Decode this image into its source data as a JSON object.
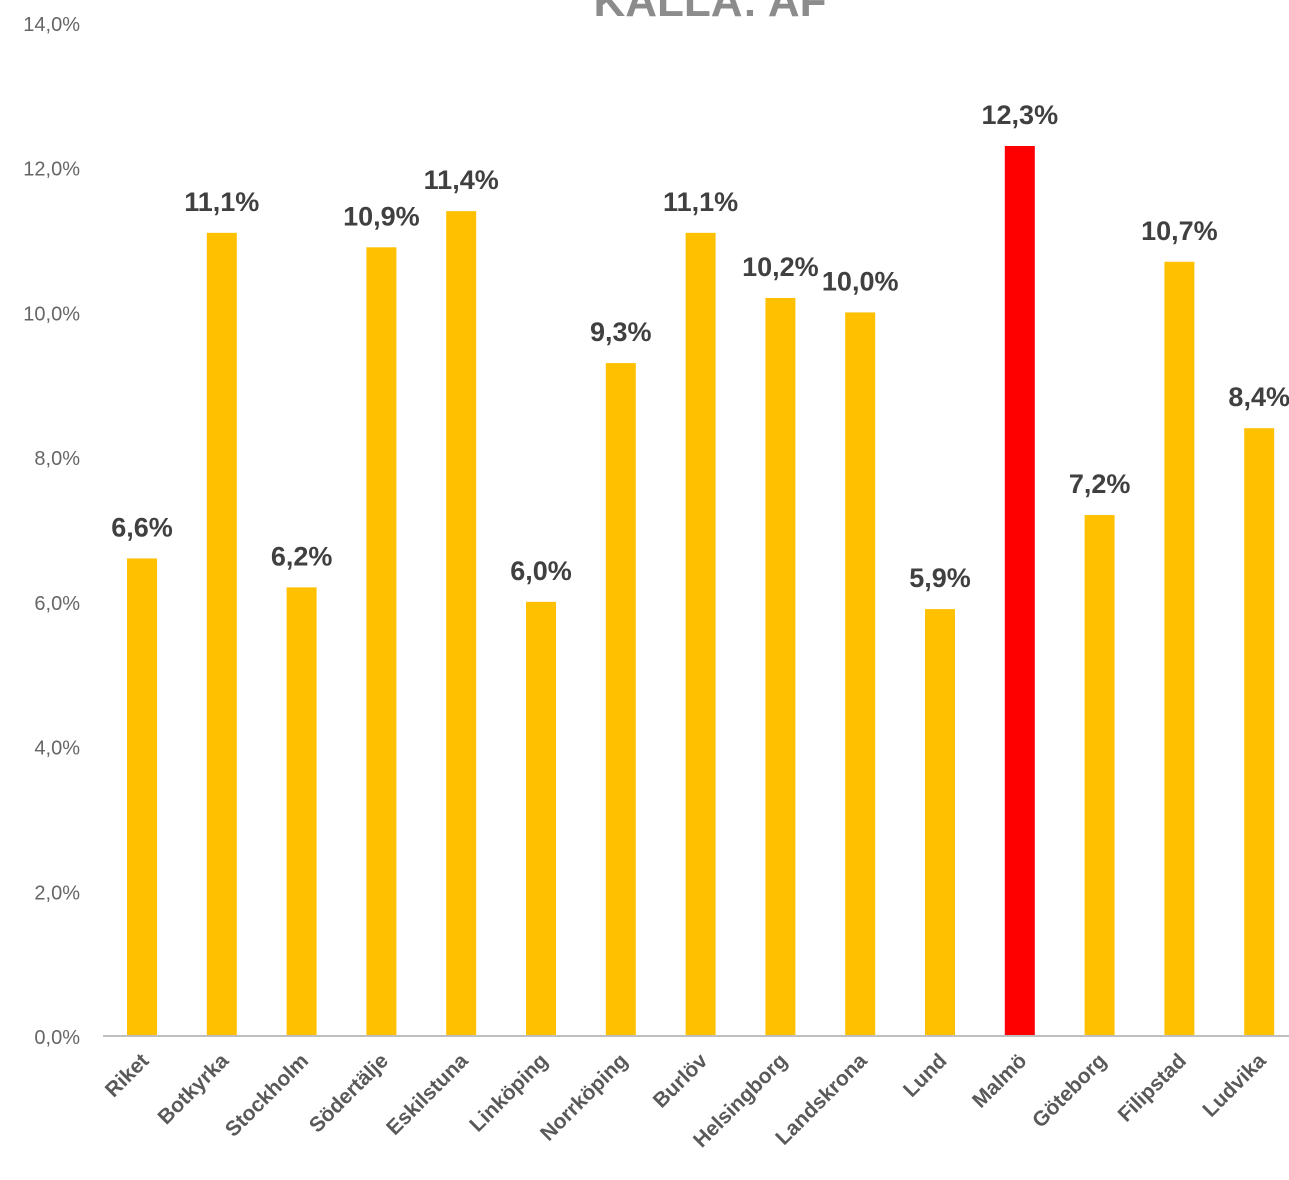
{
  "chart_data": {
    "type": "bar",
    "title": "KÄLLA: AF",
    "xlabel": "",
    "ylabel": "",
    "ylim": [
      0,
      14
    ],
    "y_ticks": [
      "0,0%",
      "2,0%",
      "4,0%",
      "6,0%",
      "8,0%",
      "10,0%",
      "12,0%",
      "14,0%"
    ],
    "grid": false,
    "legend": "none",
    "categories": [
      "Riket",
      "Botkyrka",
      "Stockholm",
      "Södertälje",
      "Eskilstuna",
      "Linköping",
      "Norrköping",
      "Burlöv",
      "Helsingborg",
      "Landskrona",
      "Lund",
      "Malmö",
      "Göteborg",
      "Filipstad",
      "Ludvika"
    ],
    "values": [
      6.6,
      11.1,
      6.2,
      10.9,
      11.4,
      6.0,
      9.3,
      11.1,
      10.2,
      10.0,
      5.9,
      12.3,
      7.2,
      10.7,
      8.4
    ],
    "data_labels": [
      "6,6%",
      "11,1%",
      "6,2%",
      "10,9%",
      "11,4%",
      "6,0%",
      "9,3%",
      "11,1%",
      "10,2%",
      "10,0%",
      "5,9%",
      "12,3%",
      "7,2%",
      "10,7%",
      "8,4%"
    ],
    "colors": {
      "default_bar": "#FFC000",
      "highlight_bar": "#FF0000",
      "highlight_category": "Malmö",
      "axis_line": "#BFBFBF"
    }
  }
}
